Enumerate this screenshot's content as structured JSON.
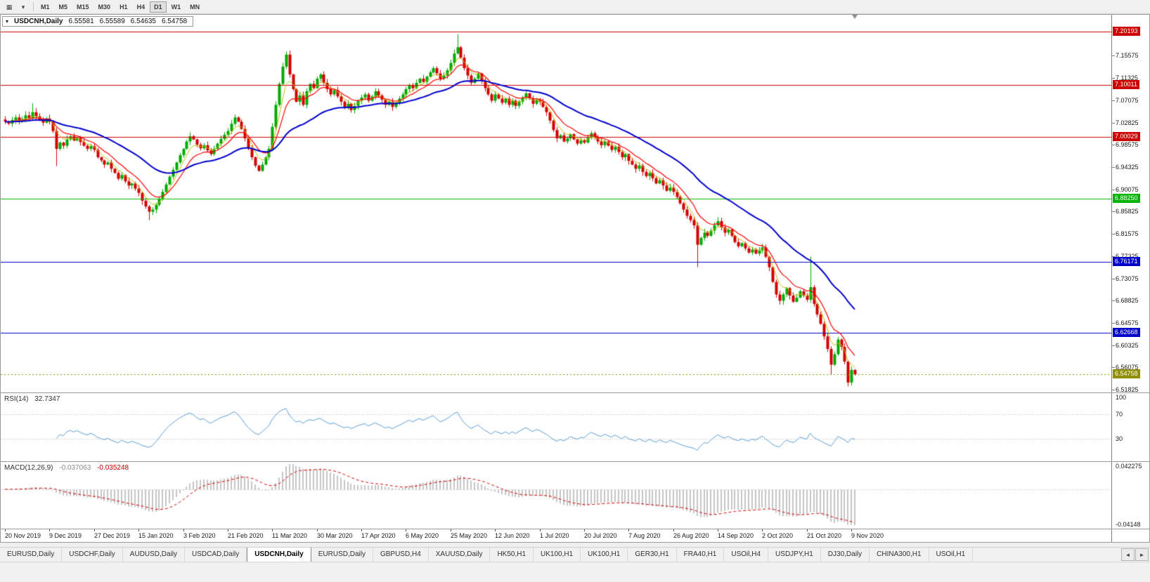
{
  "toolbar": {
    "icons": [
      {
        "name": "chart-type-icon",
        "glyph": "▦"
      },
      {
        "name": "timeframes-dropdown-icon",
        "glyph": "▾"
      }
    ],
    "timeframe_buttons": [
      {
        "label": "M1",
        "selected": false
      },
      {
        "label": "M5",
        "selected": false
      },
      {
        "label": "M15",
        "selected": false
      },
      {
        "label": "M30",
        "selected": false
      },
      {
        "label": "H1",
        "selected": false
      },
      {
        "label": "H4",
        "selected": false
      },
      {
        "label": "D1",
        "selected": true
      },
      {
        "label": "W1",
        "selected": false
      },
      {
        "label": "MN",
        "selected": false
      }
    ]
  },
  "chart_window": {
    "header": {
      "collapse_glyph": "▾",
      "symbol": "USDCNH,Daily",
      "open": "6.55581",
      "high": "6.55589",
      "low": "6.54635",
      "close": "6.54758"
    },
    "price_axis_ticks": [
      "7.15575",
      "7.11325",
      "7.07075",
      "7.02825",
      "6.98575",
      "6.94325",
      "6.90075",
      "6.85825",
      "6.81575",
      "6.77325",
      "6.73075",
      "6.68825",
      "6.64575",
      "6.60325",
      "6.56075",
      "6.51825"
    ],
    "hlines": [
      {
        "label": "7.20193",
        "price": 7.20193,
        "color": "#cc0000"
      },
      {
        "label": "7.10011",
        "price": 7.10011,
        "color": "#cc0000"
      },
      {
        "label": "7.00029",
        "price": 7.00029,
        "color": "#cc0000"
      },
      {
        "label": "6.88250",
        "price": 6.8825,
        "color": "#00b400"
      },
      {
        "label": "6.76171",
        "price": 6.76171,
        "color": "#0000c8"
      },
      {
        "label": "6.62668",
        "price": 6.62668,
        "color": "#0000c8"
      }
    ],
    "current_price": {
      "label": "6.54758",
      "value": 6.54758,
      "color": "#8f8f00"
    }
  },
  "rsi_panel": {
    "label": "RSI(14)",
    "value": "32.7347",
    "axis": [
      "100",
      "70",
      "30"
    ],
    "levels": [
      70,
      30
    ],
    "line_color": "#5a9bd4"
  },
  "macd_panel": {
    "label": "MACD(12,26,9)",
    "macd_value": "-0.037063",
    "signal_value": "-0.035248",
    "axis_top": "0.042275",
    "axis_bottom": "-0.04148",
    "histogram_color": "#c4c4c4",
    "signal_color": "#d40000"
  },
  "tabs": {
    "items": [
      "EURUSD,Daily",
      "USDCHF,Daily",
      "AUDUSD,Daily",
      "USDCAD,Daily",
      "USDCNH,Daily",
      "EURUSD,Daily",
      "GBPUSD,H4",
      "XAUUSD,Daily",
      "HK50,H1",
      "UK100,H1",
      "UK100,H1",
      "GER30,H1",
      "FRA40,H1",
      "USOil,H4",
      "USDJPY,H1",
      "DJ30,Daily",
      "CHINA300,H1",
      "USOil,H1"
    ],
    "active_index": 4,
    "scroll_left_glyph": "◄",
    "scroll_right_glyph": "►"
  },
  "chart_data": {
    "type": "candlestick",
    "title": "USDCNH Daily",
    "symbol": "USDCNH",
    "timeframe": "Daily",
    "ylim": [
      6.513,
      7.234
    ],
    "up_color": "#00a800",
    "down_color": "#d40000",
    "ma_fast": {
      "type": "ema",
      "period": 10,
      "color": "#ff0000"
    },
    "ma_slow": {
      "type": "ema",
      "period": 34,
      "color": "#0000cc"
    },
    "ma_extra": {
      "type": "ema",
      "period": 5,
      "color": "#bdbd00"
    },
    "x_labels": [
      "20 Nov 2019",
      "9 Dec 2019",
      "27 Dec 2019",
      "15 Jan 2020",
      "3 Feb 2020",
      "21 Feb 2020",
      "11 Mar 2020",
      "30 Mar 2020",
      "17 Apr 2020",
      "6 May 2020",
      "25 May 2020",
      "12 Jun 2020",
      "1 Jul 2020",
      "20 Jul 2020",
      "7 Aug 2020",
      "26 Aug 2020",
      "14 Sep 2020",
      "2 Oct 2020",
      "21 Oct 2020",
      "9 Nov 2020"
    ],
    "x_label_indices": [
      0,
      13,
      26,
      39,
      52,
      65,
      78,
      91,
      104,
      117,
      130,
      143,
      156,
      169,
      182,
      195,
      208,
      221,
      234,
      247
    ],
    "closes": [
      7.03,
      7.026,
      7.033,
      7.038,
      7.03,
      7.035,
      7.042,
      7.036,
      7.048,
      7.04,
      7.033,
      7.028,
      7.036,
      7.03,
      7.012,
      6.978,
      6.99,
      6.984,
      6.996,
      7.002,
      6.994,
      6.999,
      6.991,
      6.984,
      6.978,
      6.983,
      6.976,
      6.962,
      6.956,
      6.948,
      6.952,
      6.94,
      6.932,
      6.921,
      6.928,
      6.916,
      6.908,
      6.912,
      6.902,
      6.894,
      6.879,
      6.868,
      6.858,
      6.862,
      6.871,
      6.882,
      6.896,
      6.91,
      6.925,
      6.938,
      6.952,
      6.966,
      6.978,
      6.992,
      7.002,
      6.996,
      6.986,
      6.979,
      6.985,
      6.975,
      6.968,
      6.978,
      6.988,
      6.997,
      7.005,
      7.012,
      7.026,
      7.038,
      7.03,
      7.016,
      6.998,
      6.978,
      6.962,
      6.946,
      6.936,
      6.948,
      6.962,
      6.978,
      7.02,
      7.062,
      7.102,
      7.135,
      7.158,
      7.12,
      7.092,
      7.068,
      7.08,
      7.062,
      7.088,
      7.102,
      7.094,
      7.112,
      7.12,
      7.104,
      7.092,
      7.082,
      7.09,
      7.078,
      7.068,
      7.058,
      7.064,
      7.052,
      7.06,
      7.07,
      7.076,
      7.082,
      7.07,
      7.078,
      7.088,
      7.08,
      7.072,
      7.062,
      7.068,
      7.058,
      7.066,
      7.074,
      7.082,
      7.092,
      7.1,
      7.094,
      7.104,
      7.112,
      7.106,
      7.116,
      7.124,
      7.132,
      7.122,
      7.112,
      7.118,
      7.128,
      7.142,
      7.16,
      7.172,
      7.152,
      7.132,
      7.118,
      7.104,
      7.112,
      7.122,
      7.108,
      7.094,
      7.082,
      7.07,
      7.082,
      7.074,
      7.066,
      7.074,
      7.062,
      7.07,
      7.06,
      7.068,
      7.076,
      7.084,
      7.074,
      7.064,
      7.072,
      7.068,
      7.058,
      7.048,
      7.032,
      7.014,
      6.998,
      7.004,
      6.992,
      6.998,
      7.006,
      6.996,
      6.988,
      6.994,
      6.99,
      6.999,
      7.008,
      7.0,
      6.992,
      6.985,
      6.992,
      6.984,
      6.976,
      6.982,
      6.972,
      6.962,
      6.968,
      6.955,
      6.948,
      6.94,
      6.946,
      6.934,
      6.926,
      6.932,
      6.922,
      6.912,
      6.918,
      6.908,
      6.898,
      6.904,
      6.896,
      6.886,
      6.874,
      6.862,
      6.85,
      6.842,
      6.832,
      6.795,
      6.808,
      6.818,
      6.812,
      6.822,
      6.832,
      6.84,
      6.828,
      6.818,
      6.824,
      6.812,
      6.8,
      6.792,
      6.798,
      6.788,
      6.78,
      6.786,
      6.778,
      6.784,
      6.79,
      6.772,
      6.752,
      6.724,
      6.7,
      6.688,
      6.7,
      6.712,
      6.698,
      6.686,
      6.694,
      6.706,
      6.698,
      6.69,
      6.714,
      6.682,
      6.662,
      6.644,
      6.62,
      6.596,
      6.566,
      6.586,
      6.614,
      6.6,
      6.572,
      6.532,
      6.556,
      6.5476
    ],
    "wick_overrides": {
      "8": {
        "high": 7.065
      },
      "15": {
        "low": 6.945
      },
      "42": {
        "low": 6.842
      },
      "82": {
        "high": 7.164
      },
      "132": {
        "high": 7.1964
      },
      "202": {
        "low": 6.752
      },
      "235": {
        "high": 6.7725
      },
      "241": {
        "low": 6.548
      },
      "246": {
        "low": 6.525
      }
    }
  }
}
